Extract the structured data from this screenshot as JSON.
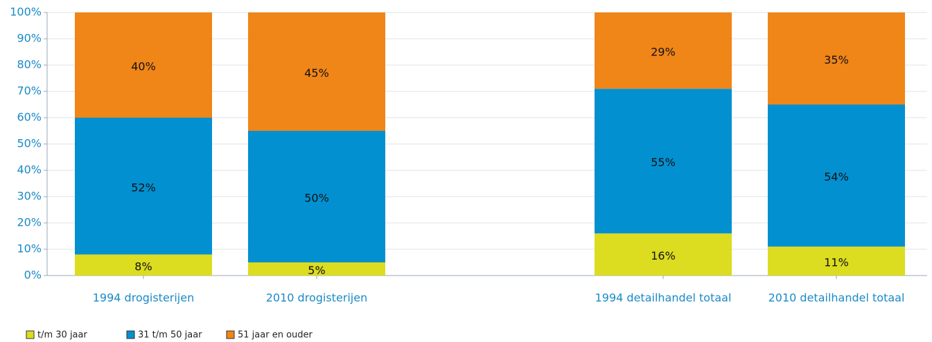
{
  "chart_data": {
    "type": "stacked_bar",
    "categories": [
      "1994 drogisterijen",
      "2010 drogisterijen",
      null,
      "1994 detailhandel totaal",
      "2010 detailhandel totaal"
    ],
    "series": [
      {
        "name": "t/m 30 jaar",
        "color": "#dcdc20",
        "values": [
          8,
          5,
          null,
          16,
          11
        ],
        "value_labels": [
          "8%",
          "5%",
          null,
          "16%",
          "11%"
        ]
      },
      {
        "name": "31 t/m 50 jaar",
        "color": "#0290d0",
        "values": [
          52,
          50,
          null,
          55,
          54
        ],
        "value_labels": [
          "52%",
          "50%",
          null,
          "55%",
          "54%"
        ]
      },
      {
        "name": "51 jaar en ouder",
        "color": "#f08518",
        "values": [
          40,
          45,
          null,
          29,
          35
        ],
        "value_labels": [
          "40%",
          "45%",
          null,
          "29%",
          "35%"
        ]
      }
    ],
    "ylim": [
      0,
      100
    ],
    "yticks": [
      {
        "value": 0,
        "label": "0%"
      },
      {
        "value": 10,
        "label": "10%"
      },
      {
        "value": 20,
        "label": "20%"
      },
      {
        "value": 30,
        "label": "30%"
      },
      {
        "value": 40,
        "label": "40%"
      },
      {
        "value": 50,
        "label": "50%"
      },
      {
        "value": 60,
        "label": "60%"
      },
      {
        "value": 70,
        "label": "70%"
      },
      {
        "value": 80,
        "label": "80%"
      },
      {
        "value": 90,
        "label": "90%"
      },
      {
        "value": 100,
        "label": "100%"
      }
    ],
    "grid": true,
    "legend": "bottom"
  }
}
